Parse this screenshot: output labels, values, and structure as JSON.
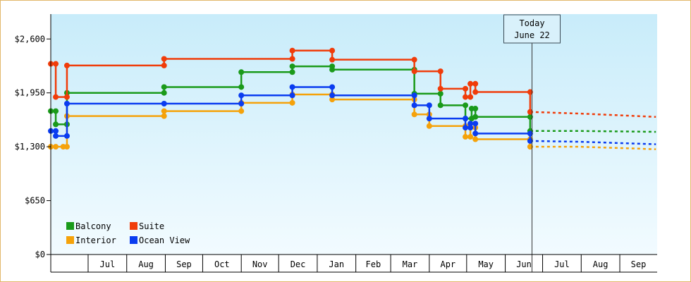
{
  "chart_data": {
    "type": "line",
    "title": "",
    "xlabel": "",
    "ylabel": "",
    "ylim": [
      0,
      2900
    ],
    "y_ticks": [
      {
        "value": 0,
        "label": "$0"
      },
      {
        "value": 650,
        "label": "$650"
      },
      {
        "value": 1300,
        "label": "$1,300"
      },
      {
        "value": 1950,
        "label": "$1,950"
      },
      {
        "value": 2600,
        "label": "$2,600"
      }
    ],
    "x_range": [
      "2025-06-01",
      "2026-09-30"
    ],
    "x_months": [
      {
        "start": "2025-06-01",
        "label": ""
      },
      {
        "start": "2025-07-01",
        "label": "Jul"
      },
      {
        "start": "2025-08-01",
        "label": "Aug"
      },
      {
        "start": "2025-09-01",
        "label": "Sep"
      },
      {
        "start": "2025-10-01",
        "label": "Oct"
      },
      {
        "start": "2025-11-01",
        "label": "Nov"
      },
      {
        "start": "2025-12-01",
        "label": "Dec"
      },
      {
        "start": "2026-01-01",
        "label": "Jan"
      },
      {
        "start": "2026-02-01",
        "label": "Feb"
      },
      {
        "start": "2026-03-01",
        "label": "Mar"
      },
      {
        "start": "2026-04-01",
        "label": "Apr"
      },
      {
        "start": "2026-05-01",
        "label": "May"
      },
      {
        "start": "2026-06-01",
        "label": "Jun"
      },
      {
        "start": "2026-07-01",
        "label": "Jul"
      },
      {
        "start": "2026-08-01",
        "label": "Aug"
      },
      {
        "start": "2026-09-01",
        "label": "Sep"
      }
    ],
    "today": {
      "date": "2026-06-22",
      "line1": "Today",
      "line2": "June 22"
    },
    "legend": {
      "placement": "bottom-left"
    },
    "grid": false,
    "background": {
      "top": "#c8ecfa",
      "bottom": "#f2fbff"
    },
    "series": [
      {
        "name": "Balcony",
        "color": "#1a9a1a",
        "points": [
          [
            "2025-06-01",
            1730
          ],
          [
            "2025-06-05",
            1730
          ],
          [
            "2025-06-05",
            1570
          ],
          [
            "2025-06-14",
            1570
          ],
          [
            "2025-06-14",
            1950
          ],
          [
            "2025-08-31",
            1950
          ],
          [
            "2025-08-31",
            2020
          ],
          [
            "2025-11-01",
            2020
          ],
          [
            "2025-11-01",
            2200
          ],
          [
            "2025-12-12",
            2200
          ],
          [
            "2025-12-12",
            2270
          ],
          [
            "2026-01-13",
            2270
          ],
          [
            "2026-01-13",
            2230
          ],
          [
            "2026-03-20",
            2230
          ],
          [
            "2026-03-20",
            1940
          ],
          [
            "2026-04-10",
            1940
          ],
          [
            "2026-04-10",
            1800
          ],
          [
            "2026-04-30",
            1800
          ],
          [
            "2026-04-30",
            1640
          ],
          [
            "2026-05-05",
            1640
          ],
          [
            "2026-05-05",
            1760
          ],
          [
            "2026-05-08",
            1760
          ],
          [
            "2026-05-08",
            1660
          ],
          [
            "2026-06-21",
            1660
          ],
          [
            "2026-06-21",
            1490
          ]
        ],
        "forecast": [
          [
            "2026-06-21",
            1490
          ],
          [
            "2026-07-31",
            1490
          ],
          [
            "2026-09-30",
            1480
          ]
        ]
      },
      {
        "name": "Suite",
        "color": "#f03c0a",
        "points": [
          [
            "2025-06-01",
            2300
          ],
          [
            "2025-06-05",
            2300
          ],
          [
            "2025-06-05",
            1900
          ],
          [
            "2025-06-14",
            1900
          ],
          [
            "2025-06-14",
            2280
          ],
          [
            "2025-08-31",
            2280
          ],
          [
            "2025-08-31",
            2360
          ],
          [
            "2025-12-12",
            2360
          ],
          [
            "2025-12-12",
            2460
          ],
          [
            "2026-01-13",
            2460
          ],
          [
            "2026-01-13",
            2350
          ],
          [
            "2026-03-20",
            2350
          ],
          [
            "2026-03-20",
            2210
          ],
          [
            "2026-04-10",
            2210
          ],
          [
            "2026-04-10",
            2000
          ],
          [
            "2026-04-30",
            2000
          ],
          [
            "2026-04-30",
            1900
          ],
          [
            "2026-05-04",
            1900
          ],
          [
            "2026-05-04",
            2060
          ],
          [
            "2026-05-08",
            2060
          ],
          [
            "2026-05-08",
            1960
          ],
          [
            "2026-06-21",
            1960
          ],
          [
            "2026-06-21",
            1720
          ]
        ],
        "forecast": [
          [
            "2026-06-21",
            1720
          ],
          [
            "2026-07-31",
            1700
          ],
          [
            "2026-09-30",
            1660
          ]
        ]
      },
      {
        "name": "Interior",
        "color": "#f5a20a",
        "points": [
          [
            "2025-06-01",
            1300
          ],
          [
            "2025-06-05",
            1300
          ],
          [
            "2025-06-11",
            1300
          ],
          [
            "2025-06-14",
            1300
          ],
          [
            "2025-06-14",
            1670
          ],
          [
            "2025-08-31",
            1670
          ],
          [
            "2025-08-31",
            1730
          ],
          [
            "2025-11-01",
            1730
          ],
          [
            "2025-11-01",
            1830
          ],
          [
            "2025-12-12",
            1830
          ],
          [
            "2025-12-12",
            1930
          ],
          [
            "2026-01-13",
            1930
          ],
          [
            "2026-01-13",
            1870
          ],
          [
            "2026-03-20",
            1870
          ],
          [
            "2026-03-20",
            1690
          ],
          [
            "2026-04-01",
            1690
          ],
          [
            "2026-04-01",
            1550
          ],
          [
            "2026-04-30",
            1550
          ],
          [
            "2026-04-30",
            1420
          ],
          [
            "2026-05-04",
            1420
          ],
          [
            "2026-05-04",
            1530
          ],
          [
            "2026-05-08",
            1530
          ],
          [
            "2026-05-08",
            1390
          ],
          [
            "2026-06-21",
            1390
          ],
          [
            "2026-06-21",
            1300
          ]
        ],
        "forecast": [
          [
            "2026-06-21",
            1300
          ],
          [
            "2026-07-31",
            1300
          ],
          [
            "2026-09-30",
            1270
          ]
        ]
      },
      {
        "name": "Ocean View",
        "color": "#0a3cf0",
        "points": [
          [
            "2025-06-01",
            1490
          ],
          [
            "2025-06-05",
            1490
          ],
          [
            "2025-06-05",
            1430
          ],
          [
            "2025-06-14",
            1430
          ],
          [
            "2025-06-14",
            1820
          ],
          [
            "2025-08-31",
            1820
          ],
          [
            "2025-11-01",
            1820
          ],
          [
            "2025-11-01",
            1920
          ],
          [
            "2025-12-12",
            1920
          ],
          [
            "2025-12-12",
            2020
          ],
          [
            "2026-01-13",
            2020
          ],
          [
            "2026-01-13",
            1920
          ],
          [
            "2026-03-20",
            1920
          ],
          [
            "2026-03-20",
            1800
          ],
          [
            "2026-04-01",
            1800
          ],
          [
            "2026-04-01",
            1640
          ],
          [
            "2026-04-30",
            1640
          ],
          [
            "2026-04-30",
            1530
          ],
          [
            "2026-05-04",
            1530
          ],
          [
            "2026-05-04",
            1580
          ],
          [
            "2026-05-08",
            1580
          ],
          [
            "2026-05-08",
            1460
          ],
          [
            "2026-06-21",
            1460
          ],
          [
            "2026-06-21",
            1370
          ]
        ],
        "forecast": [
          [
            "2026-06-21",
            1370
          ],
          [
            "2026-07-31",
            1360
          ],
          [
            "2026-09-30",
            1330
          ]
        ]
      }
    ]
  }
}
